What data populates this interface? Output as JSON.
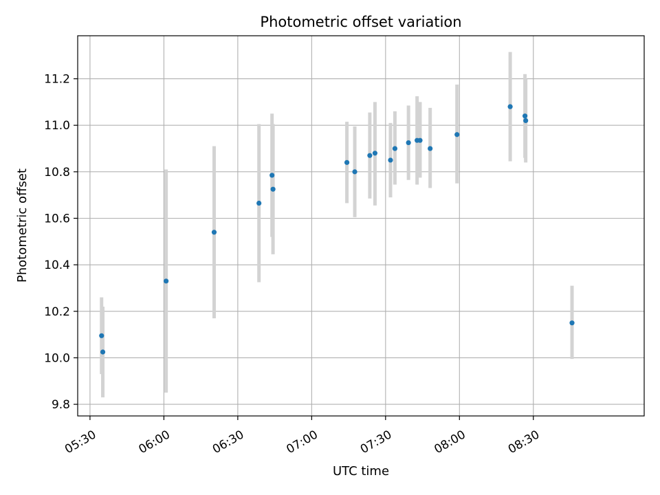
{
  "chart_data": {
    "type": "scatter",
    "title": "Photometric offset variation",
    "xlabel": "UTC time",
    "ylabel": "Photometric offset",
    "x_axis": {
      "min": "05:25",
      "max": "09:15",
      "ticks": [
        "05:30",
        "06:00",
        "06:30",
        "07:00",
        "07:30",
        "08:00",
        "08:30"
      ],
      "tick_rotation_deg": 30
    },
    "y_axis": {
      "min": 9.75,
      "max": 11.385,
      "ticks": [
        "9.8",
        "10.0",
        "10.2",
        "10.4",
        "10.6",
        "10.8",
        "11.0",
        "11.2"
      ]
    },
    "grid": true,
    "point_color": "#1f77b4",
    "errorbar_color": "#d3d3d3",
    "points": [
      {
        "x": "05:34.7",
        "y": 10.095,
        "ylo": 9.93,
        "yhi": 10.26
      },
      {
        "x": "05:35.2",
        "y": 10.025,
        "ylo": 9.83,
        "yhi": 10.22
      },
      {
        "x": "06:00.9",
        "y": 10.33,
        "ylo": 9.85,
        "yhi": 10.81
      },
      {
        "x": "06:20.4",
        "y": 10.54,
        "ylo": 10.17,
        "yhi": 10.91
      },
      {
        "x": "06:38.6",
        "y": 10.665,
        "ylo": 10.325,
        "yhi": 11.005
      },
      {
        "x": "06:43.9",
        "y": 10.785,
        "ylo": 10.52,
        "yhi": 11.05
      },
      {
        "x": "06:44.3",
        "y": 10.725,
        "ylo": 10.445,
        "yhi": 11.005
      },
      {
        "x": "07:14.3",
        "y": 10.84,
        "ylo": 10.665,
        "yhi": 11.015
      },
      {
        "x": "07:17.5",
        "y": 10.8,
        "ylo": 10.605,
        "yhi": 10.995
      },
      {
        "x": "07:23.6",
        "y": 10.87,
        "ylo": 10.685,
        "yhi": 11.055
      },
      {
        "x": "07:25.7",
        "y": 10.88,
        "ylo": 10.655,
        "yhi": 11.1
      },
      {
        "x": "07:32.0",
        "y": 10.85,
        "ylo": 10.69,
        "yhi": 11.01
      },
      {
        "x": "07:33.8",
        "y": 10.9,
        "ylo": 10.745,
        "yhi": 11.06
      },
      {
        "x": "07:39.3",
        "y": 10.925,
        "ylo": 10.765,
        "yhi": 11.085
      },
      {
        "x": "07:42.8",
        "y": 10.935,
        "ylo": 10.745,
        "yhi": 11.125
      },
      {
        "x": "07:44.0",
        "y": 10.935,
        "ylo": 10.775,
        "yhi": 11.1
      },
      {
        "x": "07:48.1",
        "y": 10.9,
        "ylo": 10.73,
        "yhi": 11.075
      },
      {
        "x": "07:59.0",
        "y": 10.96,
        "ylo": 10.75,
        "yhi": 11.175
      },
      {
        "x": "08:20.6",
        "y": 11.08,
        "ylo": 10.845,
        "yhi": 11.315
      },
      {
        "x": "08:26.6",
        "y": 11.04,
        "ylo": 10.86,
        "yhi": 11.22
      },
      {
        "x": "08:26.9",
        "y": 11.02,
        "ylo": 10.84,
        "yhi": 11.2
      },
      {
        "x": "08:45.7",
        "y": 10.15,
        "ylo": 9.995,
        "yhi": 10.31
      }
    ]
  }
}
